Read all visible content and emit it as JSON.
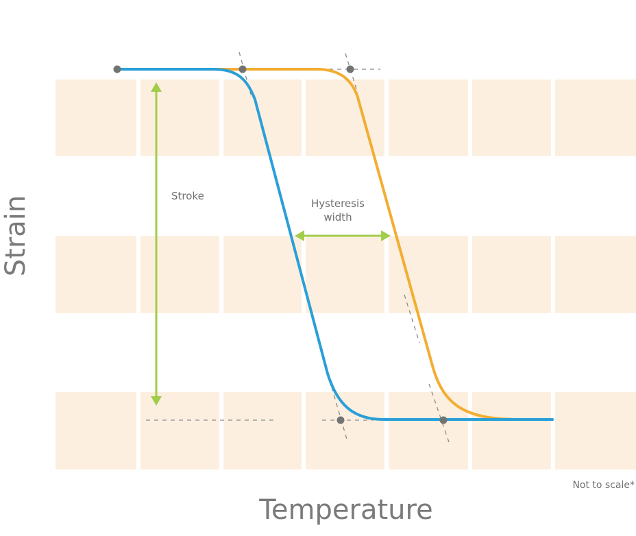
{
  "chart_data": {
    "type": "line",
    "xlabel": "Temperature",
    "ylabel": "Strain",
    "annotations": {
      "stroke": "Stroke",
      "hysteresis_line1": "Hysteresis",
      "hysteresis_line2": "width"
    },
    "footnote": "Not to scale*",
    "series": [
      {
        "color": "#2a9fd8"
      },
      {
        "color": "#f2ae32"
      }
    ]
  }
}
